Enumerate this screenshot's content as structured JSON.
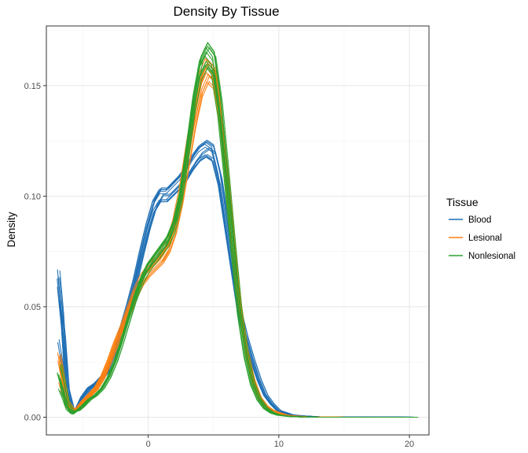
{
  "chart_data": {
    "type": "line",
    "title": "Density By Tissue",
    "xlabel": "",
    "ylabel": "Density",
    "xlim": [
      -7.8,
      21.5
    ],
    "ylim": [
      -0.008,
      0.177
    ],
    "x_ticks": [
      0,
      10,
      20
    ],
    "y_ticks": [
      0.0,
      0.05,
      0.1,
      0.15
    ],
    "x_tick_labels": [
      "0",
      "10",
      "20"
    ],
    "y_tick_labels": [
      "0.00",
      "0.05",
      "0.10",
      "0.15"
    ],
    "grid": true,
    "legend": {
      "title": "Tissue",
      "position": "right",
      "entries": [
        "Blood",
        "Lesional",
        "Nonlesional"
      ]
    },
    "colors": {
      "Blood": "#1f6fb4",
      "Lesional": "#ff7f0e",
      "Nonlesional": "#2ca02c"
    },
    "series": [
      {
        "name": "Blood",
        "sample_count": 12,
        "x": [
          -6.8,
          -6.5,
          -6.2,
          -5.8,
          -5.4,
          -5.0,
          -4.5,
          -4.0,
          -3.5,
          -3.0,
          -2.5,
          -2.0,
          -1.5,
          -1.0,
          -0.5,
          0.0,
          0.5,
          1.0,
          1.5,
          2.0,
          2.5,
          3.0,
          3.5,
          4.0,
          4.5,
          5.0,
          5.5,
          6.0,
          6.5,
          7.0,
          7.5,
          8.0,
          8.5,
          9.0,
          9.5,
          10.0,
          10.5,
          11.0,
          12.0,
          13.0,
          15.0,
          20.5
        ],
        "values": [
          0.05,
          0.035,
          0.012,
          0.003,
          0.004,
          0.009,
          0.013,
          0.015,
          0.018,
          0.022,
          0.03,
          0.04,
          0.05,
          0.061,
          0.074,
          0.086,
          0.096,
          0.101,
          0.101,
          0.104,
          0.107,
          0.111,
          0.116,
          0.12,
          0.122,
          0.12,
          0.108,
          0.088,
          0.068,
          0.048,
          0.036,
          0.026,
          0.017,
          0.01,
          0.006,
          0.003,
          0.002,
          0.001,
          0.0005,
          0.0002,
          0.0001,
          0.0
        ]
      },
      {
        "name": "Lesional",
        "sample_count": 12,
        "x": [
          -6.8,
          -6.5,
          -6.2,
          -5.8,
          -5.4,
          -5.0,
          -4.5,
          -4.0,
          -3.5,
          -3.0,
          -2.5,
          -2.0,
          -1.5,
          -1.0,
          -0.5,
          0.0,
          0.5,
          1.0,
          1.5,
          2.0,
          2.5,
          3.0,
          3.5,
          4.0,
          4.5,
          5.0,
          5.5,
          6.0,
          6.5,
          7.0,
          7.5,
          8.0,
          8.5,
          9.0,
          9.5,
          10.0,
          10.5,
          11.0,
          12.0,
          13.0,
          15.0,
          20.5
        ],
        "values": [
          0.022,
          0.014,
          0.006,
          0.003,
          0.004,
          0.007,
          0.01,
          0.013,
          0.018,
          0.025,
          0.033,
          0.04,
          0.048,
          0.056,
          0.062,
          0.066,
          0.069,
          0.072,
          0.077,
          0.086,
          0.1,
          0.118,
          0.136,
          0.15,
          0.157,
          0.154,
          0.136,
          0.108,
          0.078,
          0.05,
          0.03,
          0.017,
          0.009,
          0.005,
          0.003,
          0.002,
          0.001,
          0.0006,
          0.0002,
          0.0001,
          0.0,
          0.0
        ]
      },
      {
        "name": "Nonlesional",
        "sample_count": 12,
        "x": [
          -6.8,
          -6.5,
          -6.2,
          -5.8,
          -5.4,
          -5.0,
          -4.5,
          -4.0,
          -3.5,
          -3.0,
          -2.5,
          -2.0,
          -1.5,
          -1.0,
          -0.5,
          0.0,
          0.5,
          1.0,
          1.5,
          2.0,
          2.5,
          3.0,
          3.5,
          4.0,
          4.5,
          5.0,
          5.5,
          6.0,
          6.5,
          7.0,
          7.5,
          8.0,
          8.5,
          9.0,
          9.5,
          10.0,
          10.5,
          11.0,
          12.0,
          13.0,
          15.0,
          20.5
        ],
        "values": [
          0.018,
          0.012,
          0.005,
          0.002,
          0.003,
          0.005,
          0.008,
          0.01,
          0.013,
          0.018,
          0.025,
          0.034,
          0.044,
          0.054,
          0.062,
          0.068,
          0.072,
          0.076,
          0.08,
          0.087,
          0.1,
          0.12,
          0.142,
          0.158,
          0.164,
          0.16,
          0.14,
          0.11,
          0.078,
          0.048,
          0.028,
          0.015,
          0.008,
          0.004,
          0.002,
          0.001,
          0.0006,
          0.0003,
          0.0001,
          0.0,
          0.0,
          0.0
        ]
      }
    ]
  }
}
